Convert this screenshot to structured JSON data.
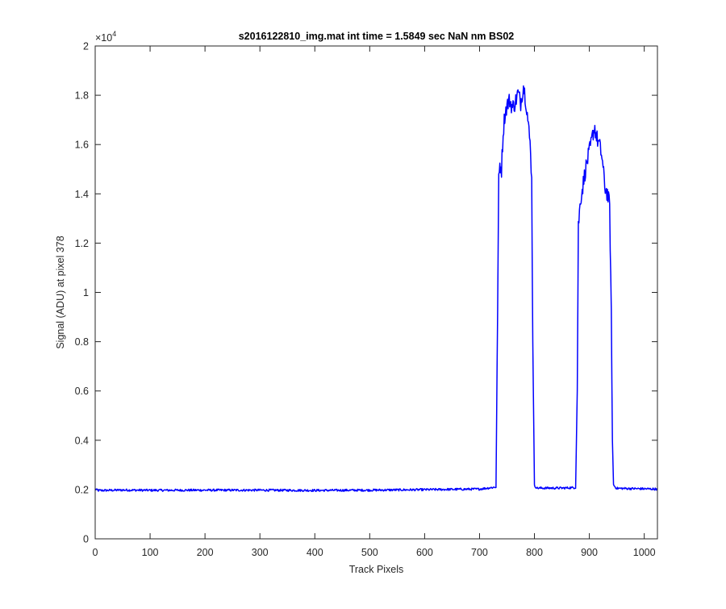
{
  "chart_data": {
    "type": "line",
    "title": "s2016122810_img.mat int time = 1.5849 sec  NaN nm BS02",
    "xlabel": "Track Pixels",
    "ylabel": "Signal (ADU) at pixel 378",
    "xlim": [
      0,
      1024
    ],
    "ylim": [
      0,
      20000
    ],
    "y_exponent_label": "×10",
    "y_exponent_power": "4",
    "xticks": [
      "0",
      "100",
      "200",
      "300",
      "400",
      "500",
      "600",
      "700",
      "800",
      "900",
      "1000"
    ],
    "yticks": [
      "0",
      "0.2",
      "0.4",
      "0.6",
      "0.8",
      "1",
      "1.2",
      "1.4",
      "1.6",
      "1.8",
      "2"
    ],
    "grid": false,
    "line_color": "#0000ff",
    "series": [
      {
        "x": [
          0,
          5,
          50,
          100,
          200,
          300,
          400,
          500,
          600,
          700,
          730,
          735,
          737,
          740,
          743,
          746,
          750,
          755,
          760,
          765,
          770,
          775,
          780,
          783,
          786,
          790,
          793,
          795,
          797,
          800,
          805,
          850,
          875,
          878,
          880,
          884,
          888,
          893,
          898,
          903,
          907,
          910,
          913,
          918,
          923,
          928,
          933,
          937,
          940,
          942,
          944,
          947,
          950,
          970,
          1000,
          1023
        ],
        "y": [
          2020,
          1960,
          1980,
          1970,
          1975,
          1975,
          1965,
          1975,
          1995,
          2020,
          2100,
          14500,
          15200,
          15000,
          16500,
          17200,
          17600,
          17800,
          17500,
          17700,
          18100,
          17700,
          18400,
          18000,
          17500,
          16500,
          15800,
          14500,
          8000,
          2150,
          2060,
          2060,
          2080,
          6000,
          12700,
          13800,
          14300,
          15000,
          15500,
          16000,
          16500,
          16700,
          16300,
          16000,
          15500,
          14300,
          14000,
          13500,
          9000,
          4000,
          2200,
          2100,
          2050,
          2040,
          2030,
          2020
        ]
      }
    ]
  }
}
